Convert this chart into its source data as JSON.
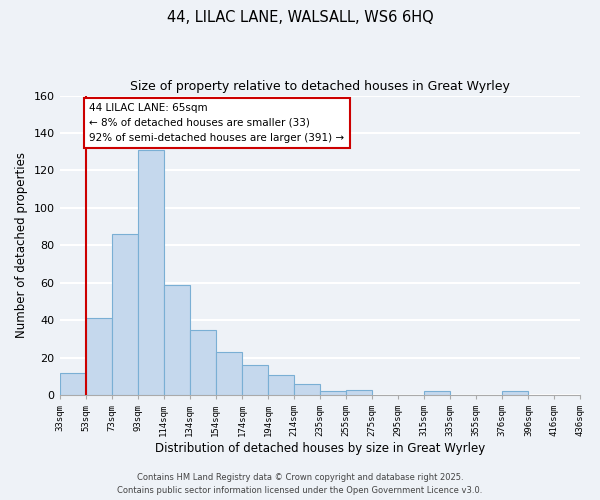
{
  "title": "44, LILAC LANE, WALSALL, WS6 6HQ",
  "subtitle": "Size of property relative to detached houses in Great Wyrley",
  "xlabel": "Distribution of detached houses by size in Great Wyrley",
  "ylabel": "Number of detached properties",
  "bar_values": [
    12,
    41,
    86,
    131,
    59,
    35,
    23,
    16,
    11,
    6,
    2,
    3,
    0,
    0,
    2,
    0,
    0,
    2
  ],
  "x_tick_labels": [
    "33sqm",
    "53sqm",
    "73sqm",
    "93sqm",
    "114sqm",
    "134sqm",
    "154sqm",
    "174sqm",
    "194sqm",
    "214sqm",
    "235sqm",
    "255sqm",
    "275sqm",
    "295sqm",
    "315sqm",
    "335sqm",
    "355sqm",
    "376sqm",
    "396sqm",
    "416sqm",
    "436sqm"
  ],
  "bar_color": "#c5d8ed",
  "bar_edge_color": "#7aafd4",
  "vline_x": 1.0,
  "vline_color": "#cc0000",
  "ylim": [
    0,
    160
  ],
  "yticks": [
    0,
    20,
    40,
    60,
    80,
    100,
    120,
    140,
    160
  ],
  "annotation_title": "44 LILAC LANE: 65sqm",
  "annotation_line1": "← 8% of detached houses are smaller (33)",
  "annotation_line2": "92% of semi-detached houses are larger (391) →",
  "footer_line1": "Contains HM Land Registry data © Crown copyright and database right 2025.",
  "footer_line2": "Contains public sector information licensed under the Open Government Licence v3.0.",
  "background_color": "#eef2f7"
}
